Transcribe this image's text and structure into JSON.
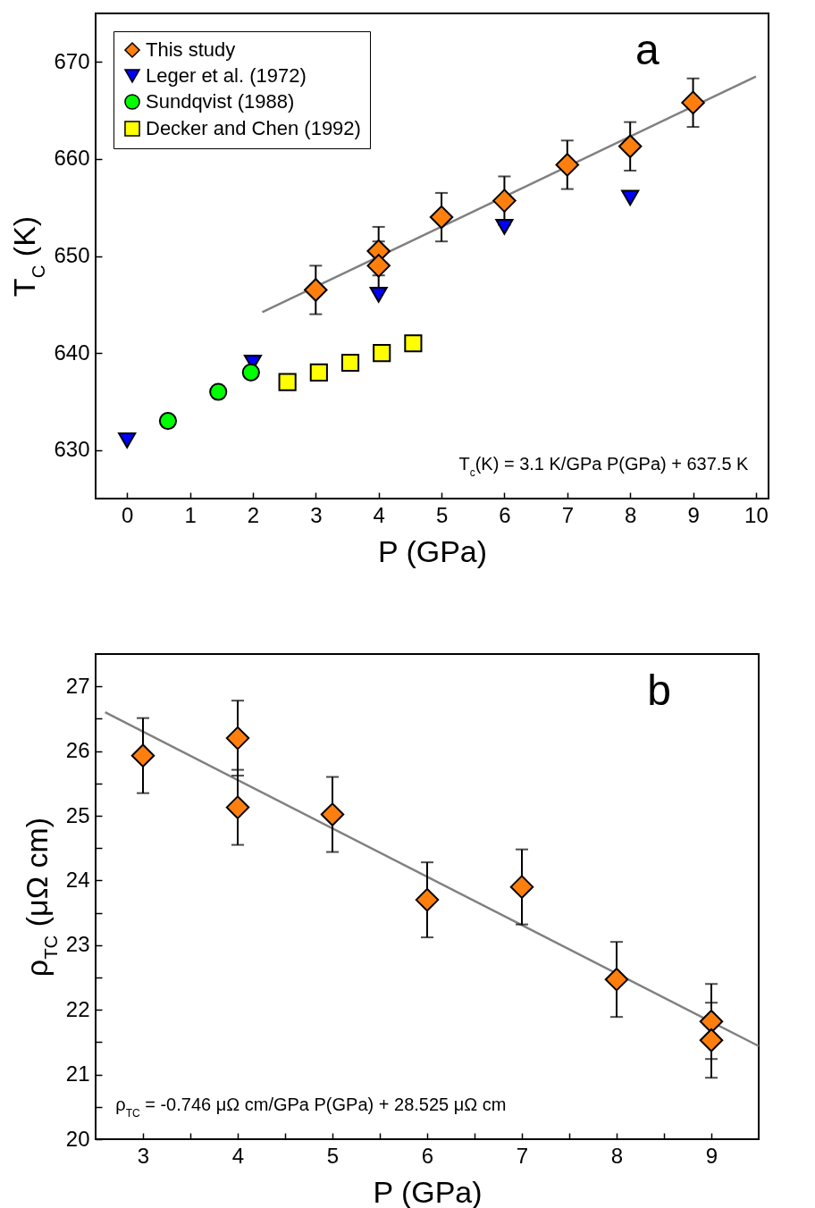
{
  "chart_data": [
    {
      "type": "scatter",
      "xlabel": "P (GPa)",
      "ylabel": "T$_{C}$ (K)",
      "xlim": [
        -0.5,
        10.2
      ],
      "ylim": [
        625,
        675
      ],
      "xticks": [
        0,
        1,
        2,
        3,
        4,
        5,
        6,
        7,
        8,
        9,
        10
      ],
      "yticks": [
        630,
        640,
        650,
        660,
        670
      ],
      "legend": "top left",
      "grid": false,
      "annotations": [
        "a",
        "T$_{c}$(K) = 3.1 K/GPa P(GPa) + 637.5 K"
      ],
      "series": [
        {
          "type": "line",
          "color": "#808080",
          "line_style": "solid",
          "x": [
            2.15,
            10
          ],
          "values": [
            644.2,
            668.5
          ]
        },
        {
          "name": "This study",
          "color": "#ff7f0e",
          "marker": "diamond",
          "x": [
            3,
            4,
            4,
            5,
            6,
            7,
            8,
            9
          ],
          "values": [
            646.5,
            650.5,
            649,
            654,
            655.7,
            659.4,
            661.3,
            665.8
          ],
          "errors": [
            2.5,
            2.5,
            2.5,
            2.5,
            2.5,
            2.5,
            2.5,
            2.5
          ]
        },
        {
          "name": "Leger et al. (1972)",
          "color": "#0000ff",
          "marker": "triangle-down",
          "x": [
            0,
            2,
            4,
            6,
            8
          ],
          "values": [
            631,
            639,
            646,
            653,
            656
          ]
        },
        {
          "name": "Sundqvist (1988)",
          "color": "#00ff00",
          "marker": "circle",
          "x": [
            0.65,
            1.45,
            1.97
          ],
          "values": [
            633,
            636,
            638
          ]
        },
        {
          "name": "Decker and Chen (1992)",
          "color": "#ffff00",
          "marker": "square",
          "x": [
            2.55,
            3.05,
            3.55,
            4.05,
            4.55
          ],
          "values": [
            637,
            638,
            639,
            640,
            641
          ]
        }
      ]
    },
    {
      "type": "scatter",
      "xlabel": "P (GPa)",
      "ylabel": "ρ$_{TC}$ (μΩ cm)",
      "xlim": [
        2.5,
        9.5
      ],
      "ylim": [
        20,
        27.5
      ],
      "xticks": [
        3,
        {
          "value": 3.5,
          "label": null
        },
        4,
        {
          "value": 4.5,
          "label": null
        },
        5,
        {
          "value": 5.5,
          "label": null
        },
        6,
        {
          "value": 6.5,
          "label": null
        },
        7,
        {
          "value": 7.5,
          "label": null
        },
        8,
        {
          "value": 8.5,
          "label": null
        },
        9
      ],
      "yticks": [
        20,
        {
          "value": 20.5,
          "label": null
        },
        21,
        {
          "value": 21.5,
          "label": null
        },
        22,
        {
          "value": 22.5,
          "label": null
        },
        23,
        {
          "value": 23.5,
          "label": null
        },
        24,
        {
          "value": 24.5,
          "label": null
        },
        25,
        {
          "value": 25.5,
          "label": null
        },
        26,
        {
          "value": 26.5,
          "label": null
        },
        27
      ],
      "grid": false,
      "annotations": [
        "b",
        "ρ$_{TC}$  = -0.746 μΩ cm/GPa P(GPa) + 28.525 μΩ cm"
      ],
      "series": [
        {
          "type": "line",
          "color": "#808080",
          "line_style": "solid",
          "x": [
            2.6,
            9.5
          ],
          "values": [
            26.6,
            21.44
          ]
        },
        {
          "color": "#ff7f0e",
          "marker": "diamond",
          "x": [
            3,
            4,
            4,
            5,
            6,
            7,
            8,
            9,
            9
          ],
          "values": [
            25.93,
            26.2,
            25.13,
            25.02,
            23.7,
            23.9,
            22.47,
            21.82,
            21.53
          ],
          "errors": [
            0.58,
            0.58,
            0.58,
            0.58,
            0.58,
            0.58,
            0.58,
            0.58,
            0.58
          ]
        }
      ]
    }
  ]
}
